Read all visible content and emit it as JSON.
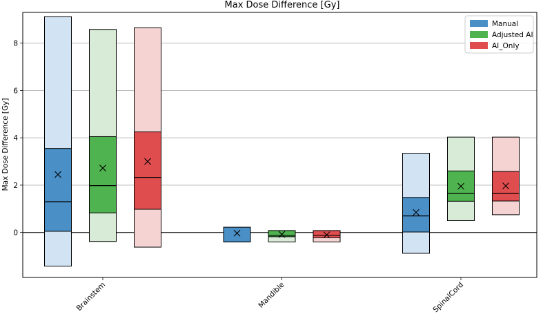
{
  "chart_data": {
    "type": "box",
    "title": "Max Dose Difference [Gy]",
    "xlabel": "",
    "ylabel": "Max Dose Difference [Gy]",
    "ylim": [
      -1.9,
      9.3
    ],
    "yticks": [
      0,
      2,
      4,
      6,
      8
    ],
    "ytick_labels": [
      "0",
      "2",
      "4",
      "6",
      "8"
    ],
    "grid": "y",
    "reference_line": 0,
    "legend_position": "top-right",
    "categories": [
      "Brainstem",
      "Mandible",
      "SpinalCord"
    ],
    "series": [
      {
        "name": "Manual",
        "color": "#1f77b4",
        "light_color": "#d2e4f4",
        "dark_color": "#4a8fc6",
        "stats": [
          {
            "min": -1.42,
            "q1": 0.05,
            "median": 1.3,
            "q3": 3.55,
            "max": 9.12,
            "mean": 2.45
          },
          {
            "min": -0.4,
            "q1": -0.4,
            "median": -0.4,
            "q3": 0.22,
            "max": 0.22,
            "mean": -0.03
          },
          {
            "min": -0.88,
            "q1": 0.02,
            "median": 0.7,
            "q3": 1.48,
            "max": 3.35,
            "mean": 0.85
          }
        ]
      },
      {
        "name": "Adjusted AI",
        "color": "#2ca02c",
        "light_color": "#d7ebd7",
        "dark_color": "#4fb44f",
        "stats": [
          {
            "min": -0.38,
            "q1": 0.83,
            "median": 1.98,
            "q3": 4.05,
            "max": 8.58,
            "mean": 2.72
          },
          {
            "min": -0.4,
            "q1": -0.18,
            "median": -0.12,
            "q3": 0.08,
            "max": 0.08,
            "mean": -0.08
          },
          {
            "min": 0.5,
            "q1": 1.32,
            "median": 1.65,
            "q3": 2.6,
            "max": 4.03,
            "mean": 1.95
          }
        ]
      },
      {
        "name": "AI_Only",
        "color": "#d62728",
        "light_color": "#f6d3d3",
        "dark_color": "#e04d4e",
        "stats": [
          {
            "min": -0.62,
            "q1": 0.98,
            "median": 2.33,
            "q3": 4.25,
            "max": 8.65,
            "mean": 3.0
          },
          {
            "min": -0.4,
            "q1": -0.22,
            "median": -0.12,
            "q3": 0.08,
            "max": 0.08,
            "mean": -0.1
          },
          {
            "min": 0.75,
            "q1": 1.33,
            "median": 1.65,
            "q3": 2.58,
            "max": 4.03,
            "mean": 1.97
          }
        ]
      }
    ]
  }
}
